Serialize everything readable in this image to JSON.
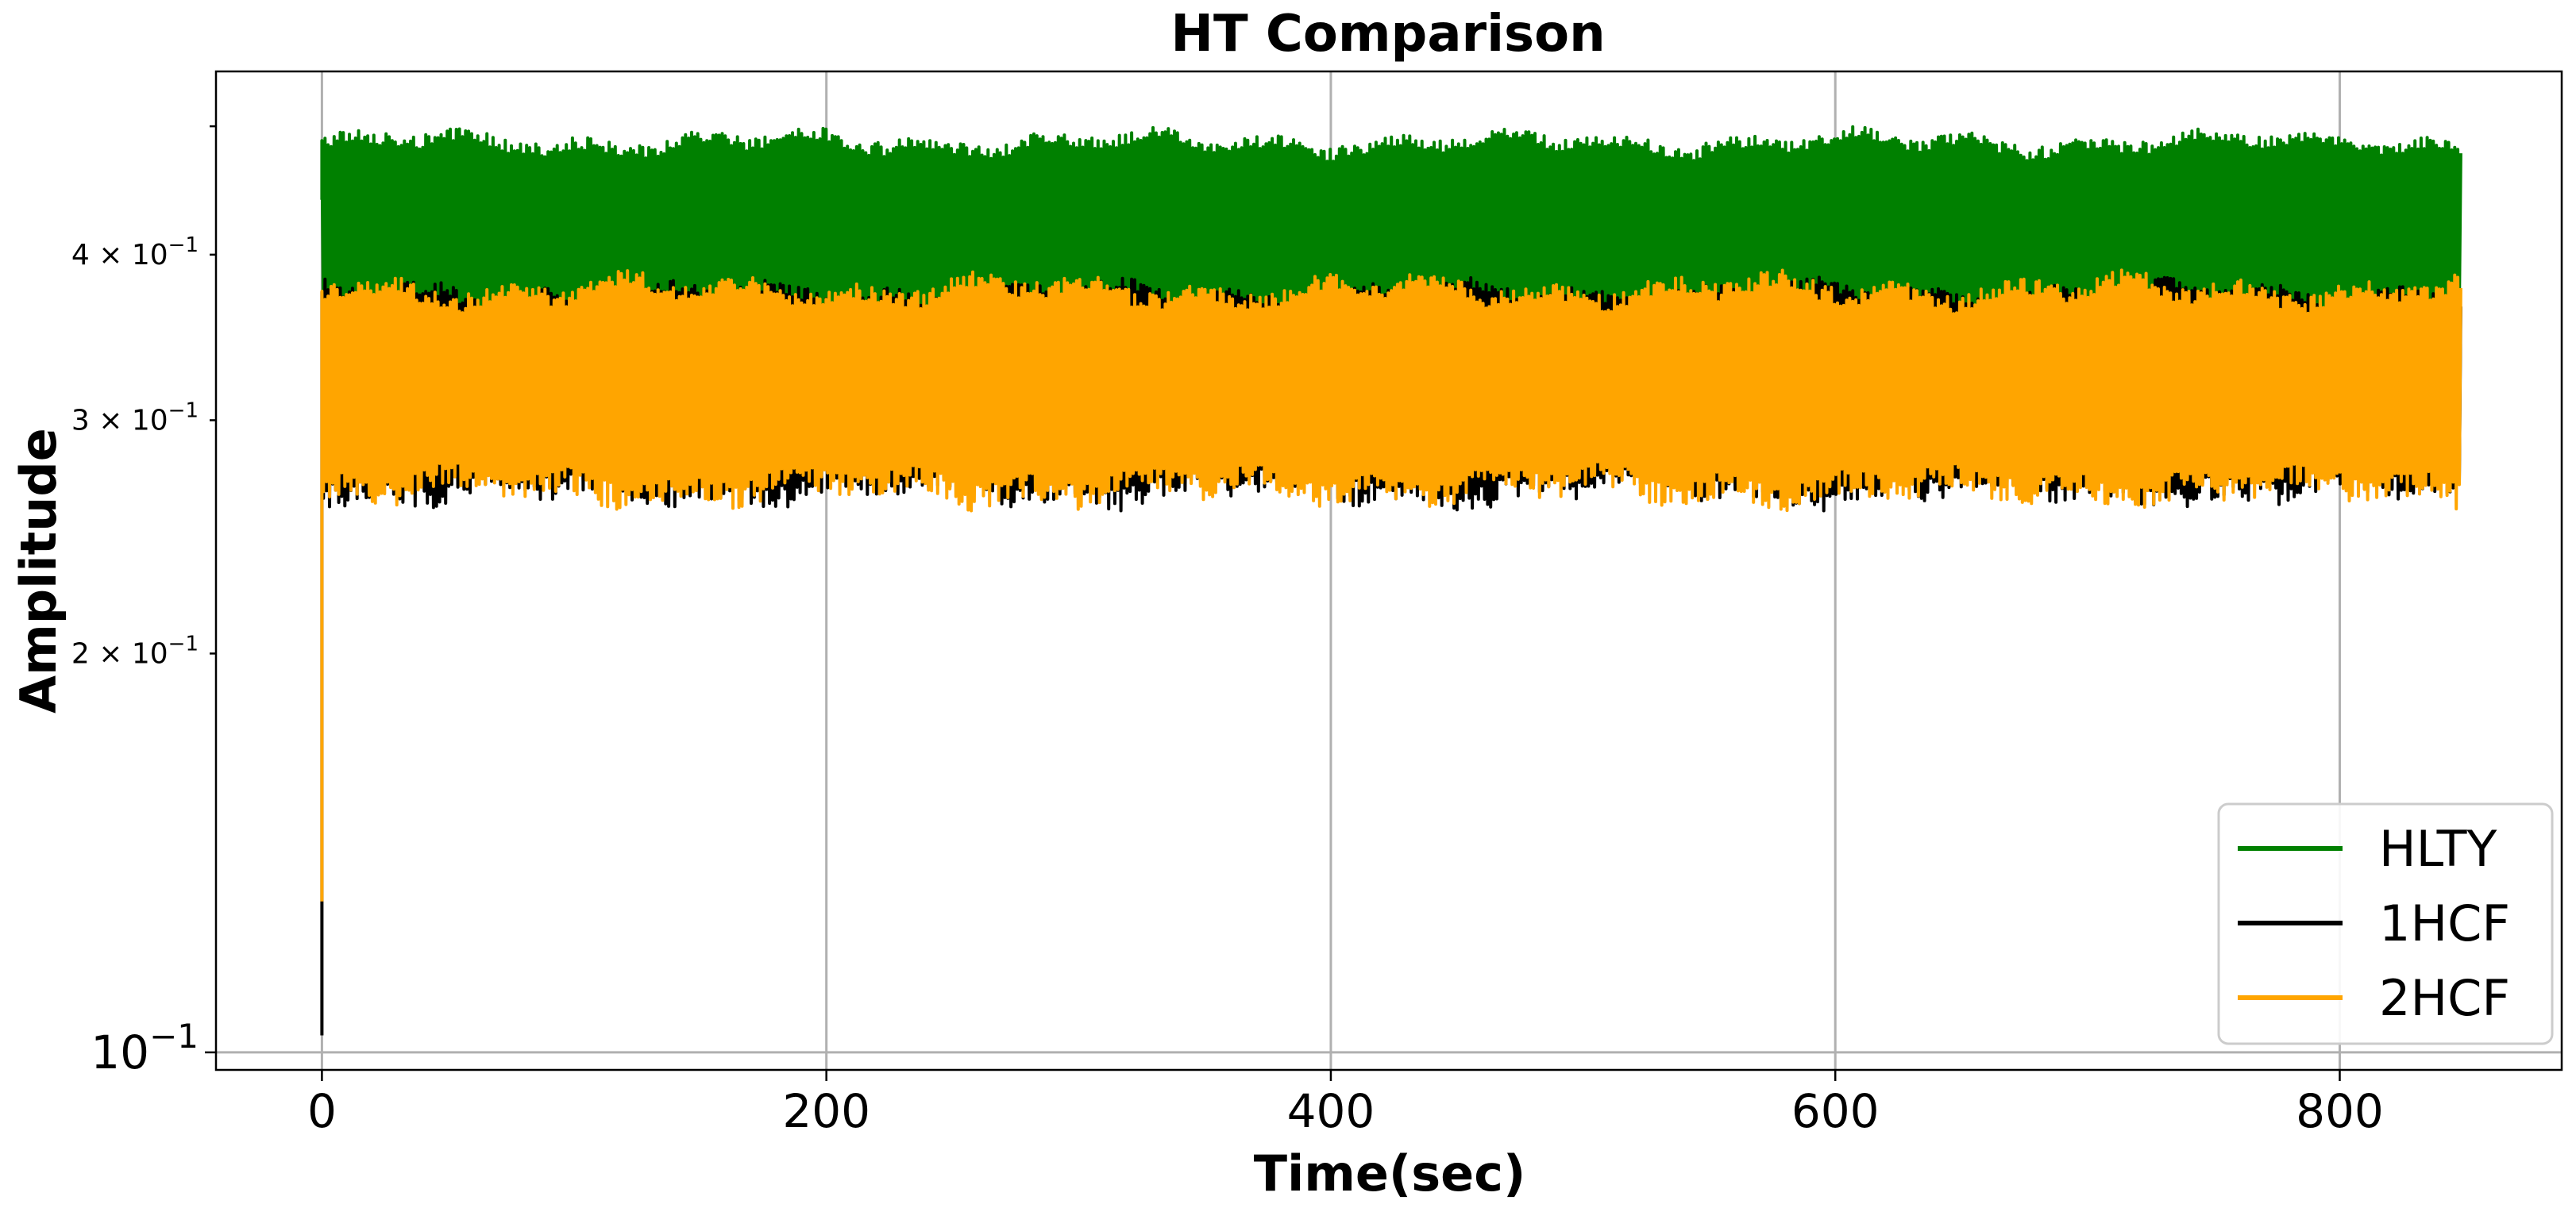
{
  "chart_data": {
    "type": "line",
    "title": "HT Comparison",
    "xlabel": "Time(sec)",
    "ylabel": "Amplitude",
    "xlim": [
      -42,
      888
    ],
    "ylim": [
      0.097,
      0.55
    ],
    "yscale": "log",
    "grid": true,
    "legend_position": "lower-right",
    "x_ticks": [
      {
        "value": 0,
        "label": "0"
      },
      {
        "value": 200,
        "label": "200"
      },
      {
        "value": 400,
        "label": "400"
      },
      {
        "value": 600,
        "label": "600"
      },
      {
        "value": 800,
        "label": "800"
      }
    ],
    "y_ticks": [
      {
        "value": 0.1,
        "base": "10",
        "exp": "−1",
        "small": false
      },
      {
        "value": 0.2,
        "base": "2 × 10",
        "exp": "−1",
        "small": true
      },
      {
        "value": 0.3,
        "base": "3 × 10",
        "exp": "−1",
        "small": true
      },
      {
        "value": 0.4,
        "base": "4 × 10",
        "exp": "−1",
        "small": true
      }
    ],
    "series": [
      {
        "name": "HLTY",
        "color": "#008000",
        "x_range": [
          0,
          848
        ],
        "upper_band": [
          0.47,
          0.5
        ],
        "lower_band": [
          0.34,
          0.37
        ],
        "start": 0.44
      },
      {
        "name": "1HCF",
        "color": "#000000",
        "x_range": [
          0,
          848
        ],
        "upper_band": [
          0.36,
          0.385
        ],
        "lower_band": [
          0.255,
          0.28
        ],
        "start": 0.103
      },
      {
        "name": "2HCF",
        "color": "#ffa500",
        "x_range": [
          0,
          848
        ],
        "upper_band": [
          0.36,
          0.39
        ],
        "lower_band": [
          0.255,
          0.28
        ],
        "start": 0.13
      }
    ]
  }
}
